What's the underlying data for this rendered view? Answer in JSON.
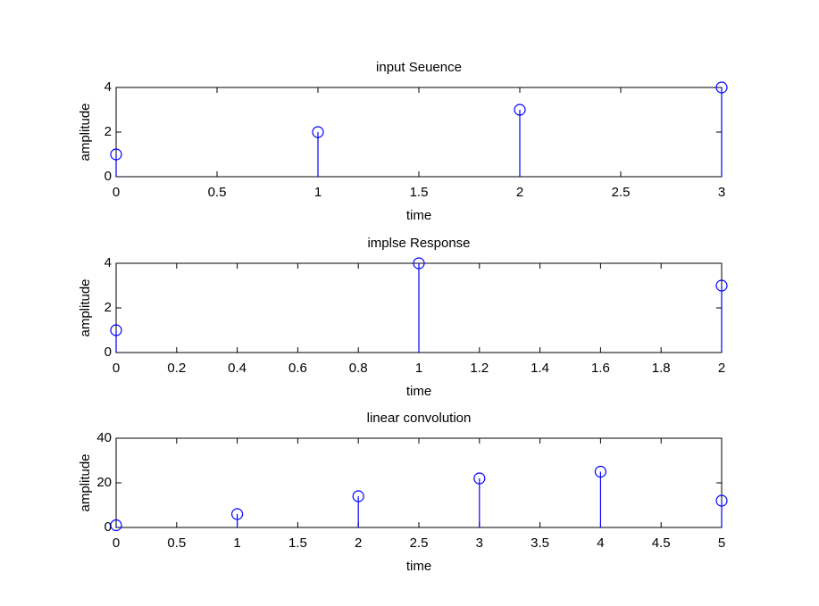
{
  "chart_data": [
    {
      "type": "stem",
      "title": "input Seuence",
      "xlabel": "time",
      "ylabel": "amplitude",
      "color": "#0000ff",
      "x": [
        0,
        1,
        2,
        3
      ],
      "values": [
        1,
        2,
        3,
        4
      ],
      "xlim": [
        0,
        3
      ],
      "xticks": [
        0,
        0.5,
        1,
        1.5,
        2,
        2.5,
        3
      ],
      "ylim": [
        0,
        4
      ],
      "yticks": [
        0,
        2,
        4
      ]
    },
    {
      "type": "stem",
      "title": "implse Response",
      "xlabel": "time",
      "ylabel": "amplitude",
      "color": "#0000ff",
      "x": [
        0,
        1,
        2
      ],
      "values": [
        1,
        4,
        3
      ],
      "xlim": [
        0,
        2
      ],
      "xticks": [
        0,
        0.2,
        0.4,
        0.6,
        0.8,
        1,
        1.2,
        1.4,
        1.6,
        1.8,
        2
      ],
      "ylim": [
        0,
        4
      ],
      "yticks": [
        0,
        2,
        4
      ]
    },
    {
      "type": "stem",
      "title": "linear convolution",
      "xlabel": "time",
      "ylabel": "amplitude",
      "color": "#0000ff",
      "x": [
        0,
        1,
        2,
        3,
        4,
        5
      ],
      "values": [
        1,
        6,
        14,
        22,
        25,
        12
      ],
      "xlim": [
        0,
        5
      ],
      "xticks": [
        0,
        0.5,
        1,
        1.5,
        2,
        2.5,
        3,
        3.5,
        4,
        4.5,
        5
      ],
      "ylim": [
        0,
        40
      ],
      "yticks": [
        0,
        20,
        40
      ]
    }
  ]
}
